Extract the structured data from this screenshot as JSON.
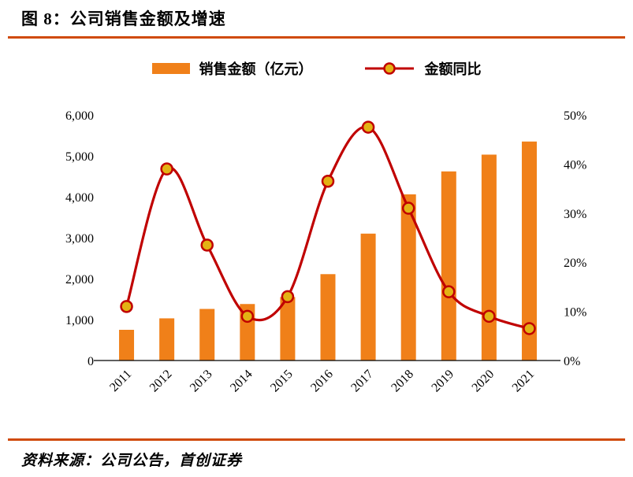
{
  "title": "图 8：公司销售金额及增速",
  "source": "资料来源：公司公告，首创证券",
  "legend": {
    "bar_label": "销售金额（亿元）",
    "line_label": "金额同比"
  },
  "colors": {
    "bar": "#F08019",
    "line": "#C00000",
    "marker_fill": "#E3B214",
    "rule": "#D04A0A",
    "axis": "#000000"
  },
  "chart_data": {
    "type": "bar",
    "subtype": "bar+line dual axis",
    "categories": [
      "2011",
      "2012",
      "2013",
      "2014",
      "2015",
      "2016",
      "2017",
      "2018",
      "2019",
      "2020",
      "2021"
    ],
    "series": [
      {
        "name": "销售金额（亿元）",
        "type": "bar",
        "axis": "left",
        "values": [
          750,
          1030,
          1260,
          1380,
          1550,
          2110,
          3100,
          4060,
          4620,
          5030,
          5350
        ]
      },
      {
        "name": "金额同比",
        "type": "line",
        "axis": "right",
        "values": [
          11,
          39,
          23.5,
          9,
          13,
          36.5,
          47.5,
          31,
          14,
          9,
          6.5
        ]
      }
    ],
    "title": "公司销售金额及增速",
    "xlabel": "",
    "ylabel_left": "销售金额（亿元）",
    "ylabel_right": "金额同比（%）",
    "left_axis": {
      "min": 0,
      "max": 6000,
      "step": 1000,
      "tick_labels": [
        "0",
        "1,000",
        "2,000",
        "3,000",
        "4,000",
        "5,000",
        "6,000"
      ]
    },
    "right_axis": {
      "min": 0,
      "max": 50,
      "step": 10,
      "tick_labels": [
        "0%",
        "10%",
        "20%",
        "30%",
        "40%",
        "50%"
      ]
    },
    "grid": false,
    "legend_position": "top"
  }
}
